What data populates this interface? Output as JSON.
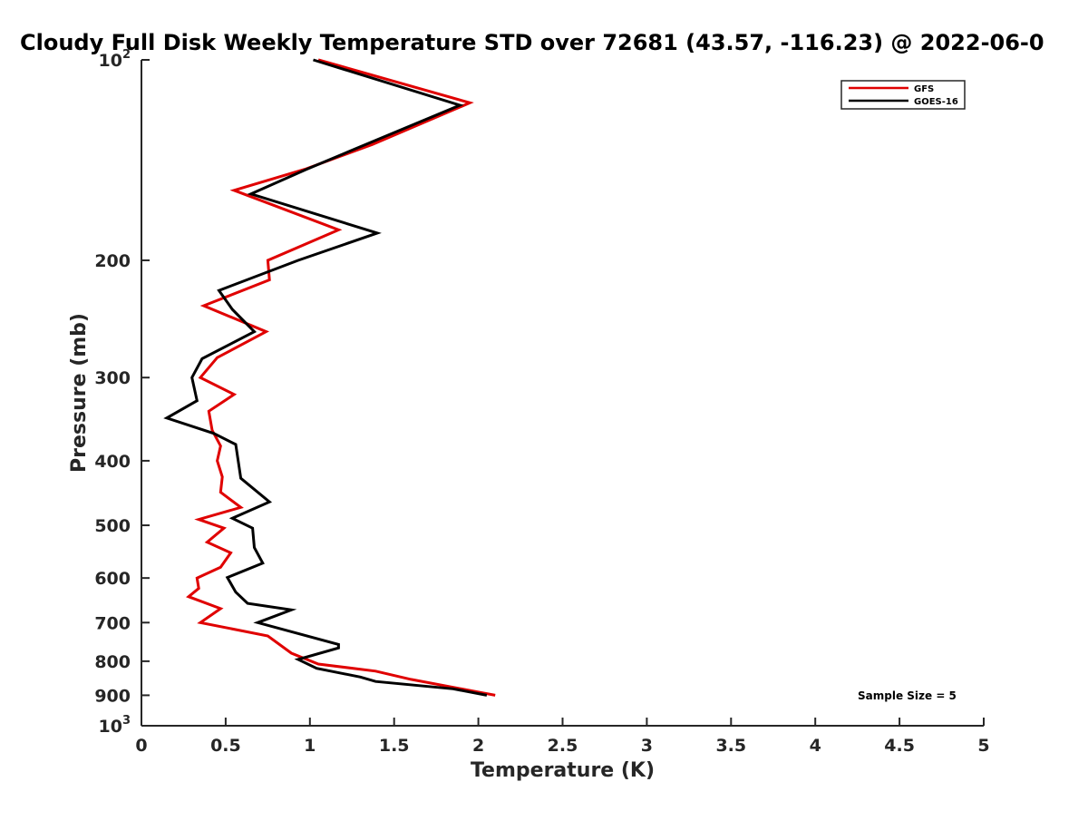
{
  "chart_data": {
    "type": "line",
    "title": "Cloudy Full Disk Weekly Temperature STD over 72681 (43.57, -116.23) @ 2022-06-0",
    "xlabel": "Temperature (K)",
    "ylabel": "Pressure (mb)",
    "xlim": [
      0,
      5
    ],
    "ylim": [
      100,
      1000
    ],
    "yscale": "log",
    "y_reversed": true,
    "grid": false,
    "legend_position": "top-right",
    "x_ticks": [
      {
        "value": 0,
        "label": "0"
      },
      {
        "value": 0.5,
        "label": "0.5"
      },
      {
        "value": 1,
        "label": "1"
      },
      {
        "value": 1.5,
        "label": "1.5"
      },
      {
        "value": 2,
        "label": "2"
      },
      {
        "value": 2.5,
        "label": "2.5"
      },
      {
        "value": 3,
        "label": "3"
      },
      {
        "value": 3.5,
        "label": "3.5"
      },
      {
        "value": 4,
        "label": "4"
      },
      {
        "value": 4.5,
        "label": "4.5"
      },
      {
        "value": 5,
        "label": "5"
      }
    ],
    "y_ticks": [
      {
        "value": 100,
        "base": "10",
        "exp": "2"
      },
      {
        "value": 200,
        "label": "200"
      },
      {
        "value": 300,
        "label": "300"
      },
      {
        "value": 400,
        "label": "400"
      },
      {
        "value": 500,
        "label": "500"
      },
      {
        "value": 600,
        "label": "600"
      },
      {
        "value": 700,
        "label": "700"
      },
      {
        "value": 800,
        "label": "800"
      },
      {
        "value": 900,
        "label": "900"
      },
      {
        "value": 1000,
        "base": "10",
        "exp": "3"
      }
    ],
    "series": [
      {
        "name": "GFS",
        "color": "#e00000",
        "points": [
          [
            1.05,
            100
          ],
          [
            1.95,
            116
          ],
          [
            1.37,
            134
          ],
          [
            0.97,
            146
          ],
          [
            0.55,
            157
          ],
          [
            1.17,
            180
          ],
          [
            0.75,
            200
          ],
          [
            0.76,
            214
          ],
          [
            0.37,
            234
          ],
          [
            0.74,
            256
          ],
          [
            0.45,
            280
          ],
          [
            0.35,
            300
          ],
          [
            0.55,
            318
          ],
          [
            0.4,
            337
          ],
          [
            0.42,
            360
          ],
          [
            0.47,
            380
          ],
          [
            0.45,
            400
          ],
          [
            0.48,
            423
          ],
          [
            0.47,
            446
          ],
          [
            0.59,
            470
          ],
          [
            0.34,
            490
          ],
          [
            0.49,
            505
          ],
          [
            0.39,
            530
          ],
          [
            0.53,
            550
          ],
          [
            0.47,
            578
          ],
          [
            0.33,
            600
          ],
          [
            0.34,
            622
          ],
          [
            0.28,
            640
          ],
          [
            0.47,
            667
          ],
          [
            0.35,
            700
          ],
          [
            0.75,
            733
          ],
          [
            0.89,
            778
          ],
          [
            1.05,
            808
          ],
          [
            1.39,
            828
          ],
          [
            1.6,
            852
          ],
          [
            2.1,
            900
          ]
        ]
      },
      {
        "name": "GOES-16",
        "color": "#000000",
        "points": [
          [
            1.02,
            100
          ],
          [
            1.89,
            117
          ],
          [
            1.27,
            136
          ],
          [
            0.98,
            146
          ],
          [
            0.65,
            159
          ],
          [
            1.4,
            182
          ],
          [
            0.93,
            200
          ],
          [
            0.46,
            222
          ],
          [
            0.54,
            237
          ],
          [
            0.67,
            256
          ],
          [
            0.36,
            281
          ],
          [
            0.3,
            300
          ],
          [
            0.33,
            325
          ],
          [
            0.15,
            345
          ],
          [
            0.43,
            364
          ],
          [
            0.56,
            378
          ],
          [
            0.59,
            425
          ],
          [
            0.76,
            461
          ],
          [
            0.54,
            488
          ],
          [
            0.66,
            505
          ],
          [
            0.67,
            540
          ],
          [
            0.72,
            570
          ],
          [
            0.51,
            599
          ],
          [
            0.56,
            630
          ],
          [
            0.63,
            655
          ],
          [
            0.89,
            670
          ],
          [
            0.69,
            700
          ],
          [
            1.17,
            755
          ],
          [
            1.17,
            764
          ],
          [
            0.93,
            795
          ],
          [
            1.04,
            820
          ],
          [
            1.3,
            845
          ],
          [
            1.39,
            858
          ],
          [
            1.85,
            880
          ],
          [
            2.05,
            900
          ]
        ]
      }
    ],
    "annotations": [
      {
        "text": "Sample Size = 5"
      }
    ]
  }
}
